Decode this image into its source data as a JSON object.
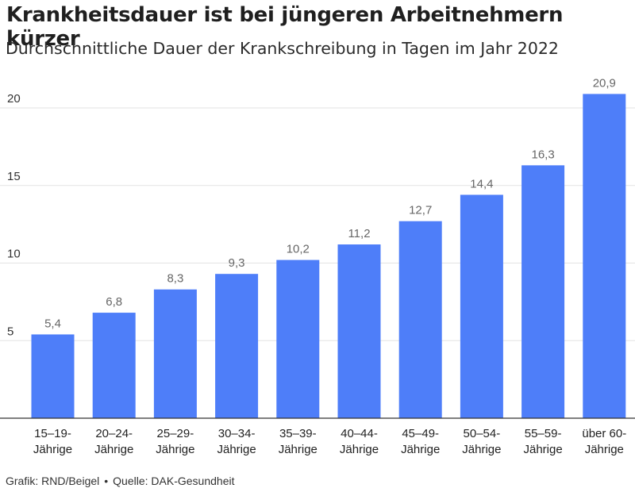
{
  "title": "Krankheitsdauer ist bei jüngeren Arbeitnehmern kürzer",
  "subtitle": "Durchschnittliche Dauer der Krankschreibung in Tagen im Jahr 2022",
  "footer": {
    "credit": "Grafik: RND/Beigel",
    "separator": "•",
    "source": "Quelle: DAK-Gesundheit"
  },
  "colors": {
    "bar": "#4e7ef9",
    "grid": "#e3e3e3",
    "axis": "#333333"
  },
  "chart_data": {
    "type": "bar",
    "title": "Krankheitsdauer ist bei jüngeren Arbeitnehmern kürzer",
    "subtitle": "Durchschnittliche Dauer der Krankschreibung in Tagen im Jahr 2022",
    "xlabel": "",
    "ylabel": "",
    "ylim": [
      0,
      22
    ],
    "yticks": [
      5,
      10,
      15,
      20
    ],
    "grid": true,
    "legend": "none",
    "categories": [
      [
        "15–19-",
        "Jährige"
      ],
      [
        "20–24-",
        "Jährige"
      ],
      [
        "25–29-",
        "Jährige"
      ],
      [
        "30–34-",
        "Jährige"
      ],
      [
        "35–39-",
        "Jährige"
      ],
      [
        "40–44-",
        "Jährige"
      ],
      [
        "45–49-",
        "Jährige"
      ],
      [
        "50–54-",
        "Jährige"
      ],
      [
        "55–59-",
        "Jährige"
      ],
      [
        "über 60-",
        "Jährige"
      ]
    ],
    "values": [
      5.4,
      6.8,
      8.3,
      9.3,
      10.2,
      11.2,
      12.7,
      14.4,
      16.3,
      20.9
    ],
    "value_labels": [
      "5,4",
      "6,8",
      "8,3",
      "9,3",
      "10,2",
      "11,2",
      "12,7",
      "14,4",
      "16,3",
      "20,9"
    ]
  }
}
